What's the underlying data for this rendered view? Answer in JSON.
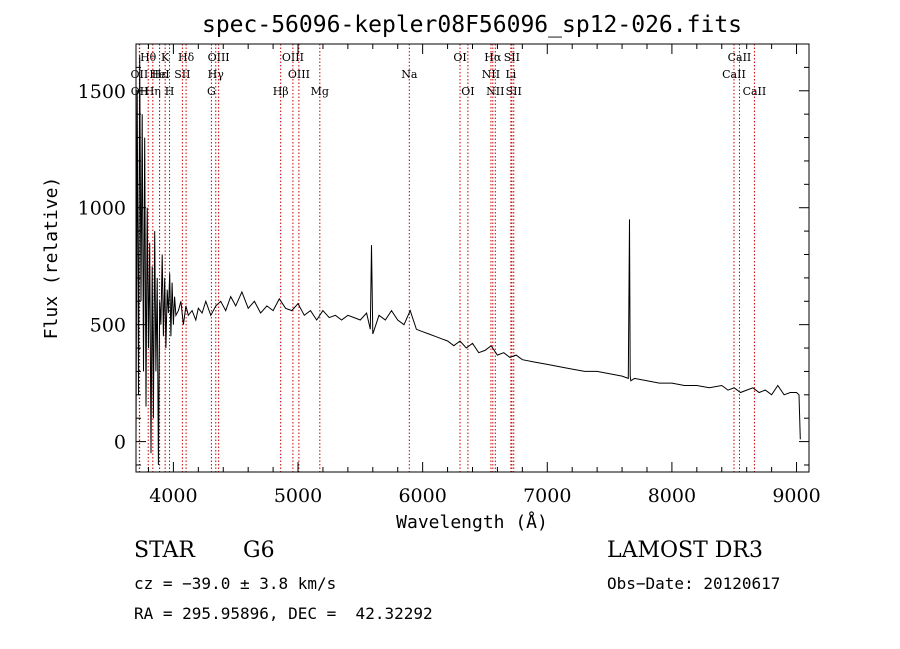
{
  "chart_data": {
    "type": "line",
    "title": "spec-56096-kepler08F56096_sp12-026.fits",
    "xlabel": "Wavelength (Å)",
    "ylabel": "Flux (relative)",
    "xlim": [
      3700,
      9100
    ],
    "ylim": [
      -130,
      1700
    ],
    "xticks": [
      4000,
      5000,
      6000,
      7000,
      8000,
      9000
    ],
    "yticks": [
      0,
      500,
      1000,
      1500
    ],
    "series": [
      {
        "name": "flux",
        "x": [
          3700,
          3710,
          3720,
          3730,
          3740,
          3750,
          3760,
          3770,
          3780,
          3790,
          3800,
          3810,
          3820,
          3830,
          3840,
          3850,
          3860,
          3870,
          3880,
          3890,
          3900,
          3910,
          3920,
          3930,
          3940,
          3950,
          3960,
          3970,
          3980,
          3990,
          4000,
          4010,
          4020,
          4040,
          4060,
          4080,
          4100,
          4120,
          4150,
          4180,
          4200,
          4230,
          4260,
          4300,
          4340,
          4380,
          4420,
          4460,
          4500,
          4550,
          4600,
          4650,
          4700,
          4750,
          4800,
          4850,
          4900,
          4950,
          5000,
          5050,
          5100,
          5150,
          5200,
          5250,
          5300,
          5350,
          5400,
          5450,
          5500,
          5550,
          5580,
          5590,
          5600,
          5650,
          5700,
          5750,
          5800,
          5850,
          5900,
          5950,
          6000,
          6050,
          6100,
          6150,
          6200,
          6250,
          6300,
          6350,
          6400,
          6450,
          6500,
          6550,
          6600,
          6650,
          6700,
          6750,
          6800,
          6900,
          7000,
          7100,
          7200,
          7300,
          7400,
          7500,
          7600,
          7650,
          7660,
          7665,
          7670,
          7700,
          7800,
          7900,
          8000,
          8100,
          8200,
          8300,
          8400,
          8450,
          8500,
          8550,
          8600,
          8650,
          8700,
          8750,
          8800,
          8850,
          8900,
          8950,
          9000,
          9020,
          9030
        ],
        "y": [
          0,
          1500,
          200,
          1650,
          600,
          1400,
          300,
          1300,
          150,
          1000,
          400,
          850,
          -50,
          750,
          100,
          900,
          300,
          700,
          -100,
          600,
          500,
          800,
          450,
          700,
          400,
          650,
          550,
          720,
          450,
          680,
          500,
          620,
          540,
          560,
          600,
          500,
          580,
          540,
          560,
          520,
          570,
          550,
          600,
          540,
          580,
          600,
          560,
          620,
          580,
          640,
          570,
          600,
          550,
          580,
          560,
          610,
          570,
          560,
          590,
          540,
          560,
          520,
          560,
          530,
          540,
          520,
          540,
          530,
          520,
          550,
          480,
          840,
          460,
          540,
          520,
          560,
          520,
          500,
          560,
          480,
          470,
          460,
          450,
          440,
          430,
          410,
          430,
          400,
          420,
          380,
          390,
          410,
          370,
          380,
          360,
          370,
          350,
          340,
          330,
          320,
          310,
          300,
          300,
          290,
          280,
          270,
          950,
          280,
          260,
          270,
          260,
          250,
          250,
          240,
          240,
          230,
          240,
          220,
          230,
          210,
          220,
          230,
          210,
          220,
          200,
          240,
          200,
          210,
          210,
          200,
          10
        ]
      }
    ],
    "lines": [
      {
        "label": "Hθ",
        "x": 3798,
        "row": 0
      },
      {
        "label": "OII",
        "x": 3727,
        "row": 1
      },
      {
        "label": "OII",
        "x": 3729,
        "row": 2
      },
      {
        "label": "K",
        "x": 3934,
        "row": 0
      },
      {
        "label": "Hε",
        "x": 3889,
        "row": 1
      },
      {
        "label": "HeI",
        "x": 3889,
        "row": 1
      },
      {
        "label": "Hη",
        "x": 3835,
        "row": 2
      },
      {
        "label": "H",
        "x": 3969,
        "row": 2
      },
      {
        "label": "SII",
        "x": 4072,
        "row": 1
      },
      {
        "label": "Hδ",
        "x": 4102,
        "row": 0
      },
      {
        "label": "OIII",
        "x": 4363,
        "row": 0
      },
      {
        "label": "Hγ",
        "x": 4340,
        "row": 1
      },
      {
        "label": "G",
        "x": 4305,
        "row": 2
      },
      {
        "label": "OIII",
        "x": 4959,
        "row": 0
      },
      {
        "label": "OIII",
        "x": 5007,
        "row": 1
      },
      {
        "label": "Hβ",
        "x": 4861,
        "row": 2
      },
      {
        "label": "Mg",
        "x": 5175,
        "row": 2
      },
      {
        "label": "Na",
        "x": 5893,
        "row": 1
      },
      {
        "label": "OI",
        "x": 6300,
        "row": 0
      },
      {
        "label": "OI",
        "x": 6363,
        "row": 2
      },
      {
        "label": "Hα",
        "x": 6563,
        "row": 0
      },
      {
        "label": "SII",
        "x": 6716,
        "row": 0
      },
      {
        "label": "NII",
        "x": 6548,
        "row": 1
      },
      {
        "label": "Li",
        "x": 6708,
        "row": 1
      },
      {
        "label": "NII",
        "x": 6583,
        "row": 2
      },
      {
        "label": "SII",
        "x": 6731,
        "row": 2
      },
      {
        "label": "CaII",
        "x": 8542,
        "row": 0
      },
      {
        "label": "CaII",
        "x": 8498,
        "row": 1
      },
      {
        "label": "CaII",
        "x": 8662,
        "row": 2
      }
    ]
  },
  "info": {
    "object_type": "STAR",
    "subclass": "G6",
    "survey": "LAMOST DR3",
    "cz": "cz = −39.0 ± 3.8 km/s",
    "obs_date": "Obs−Date: 20120617",
    "coords": "RA = 295.95896, DEC =  42.32292"
  },
  "colors": {
    "line_marker": "#cc0000",
    "spectrum": "#000000"
  }
}
